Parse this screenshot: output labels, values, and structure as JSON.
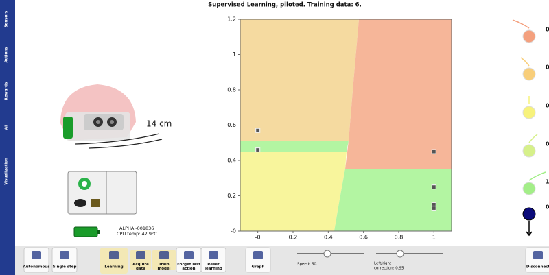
{
  "header": {
    "title": "Supervised Learning, piloted. Training data: 6."
  },
  "sidebar": {
    "tabs": [
      "Sensors",
      "Actions",
      "Rewards",
      "AI",
      "Visualization"
    ]
  },
  "robot": {
    "distance": "14 cm"
  },
  "status": {
    "device_id": "ALPHAI-001836",
    "cpu_temp": "CPU temp: 42.9°C"
  },
  "actions": {
    "values": [
      "0",
      "0",
      "0",
      "0",
      "1",
      "0"
    ]
  },
  "toolbar": {
    "buttons": [
      "Autonomous",
      "Single step",
      "Learning",
      "Acquire data",
      "Train model",
      "Forget last action",
      "Reset learning",
      "Graph",
      "Disconnect"
    ],
    "speed": "Speed: 60.",
    "correction": [
      "Left/right",
      "correction: 0.95"
    ]
  },
  "chart_data": {
    "type": "scatter",
    "x": [
      0,
      0,
      1,
      1,
      1,
      1
    ],
    "values": [
      0.57,
      0.46,
      0.45,
      0.25,
      0.15,
      0.13
    ],
    "xlim": [
      -0.1,
      1.1
    ],
    "ylim": [
      0,
      1.2
    ],
    "xticks": [
      {
        "value": 0,
        "label": "-0"
      },
      0.2,
      0.4,
      0.6,
      0.8,
      1
    ],
    "yticks": [
      {
        "value": 0,
        "label": "-0"
      },
      0.2,
      0.4,
      0.6,
      0.8,
      1,
      1.2
    ]
  }
}
